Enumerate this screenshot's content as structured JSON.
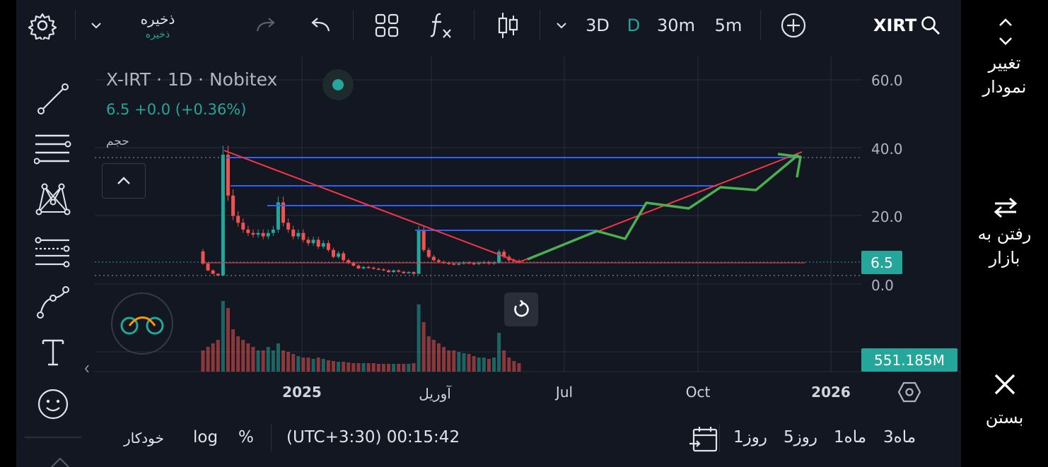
{
  "toolbar": {
    "save_label": "ذخیره",
    "save_sub": "ذخیره",
    "intervals": [
      "3D",
      "D",
      "30m",
      "5m"
    ],
    "active_interval": "D",
    "symbol": "XIRT"
  },
  "legend": {
    "title": "X-IRT",
    "interval": "· 1D · Nobitex",
    "price": "6.5",
    "change": "+0.0 (+0.36%)",
    "volume_label": "حجم"
  },
  "price_axis": {
    "ticks": [
      "60.0",
      "40.0",
      "20.0",
      "0.0"
    ],
    "last_price_tag": "6.5",
    "volume_tag": "551.185M"
  },
  "time_axis": {
    "ticks": [
      "2025",
      "آوریل",
      "Jul",
      "Oct",
      "2026"
    ]
  },
  "bottom": {
    "ranges": [
      "3ماه",
      "1ماه",
      "5روز",
      "1روز"
    ],
    "clock": "(UTC+3:30) 00:15:42",
    "percent_label": "%",
    "log_label": "log",
    "auto_label": "خودکار"
  },
  "right_panel": {
    "change_chart_line1": "تغییر",
    "change_chart_line2": "نمودار",
    "go_market_line1": "رفتن به",
    "go_market_line2": "بازار",
    "close_label": "بستن"
  },
  "colors": {
    "background": "#131722",
    "accent_teal": "#26a69a",
    "up": "#26a69a",
    "down": "#ef5350",
    "drawing_blue": "#2962ff",
    "drawing_red": "#f23645",
    "drawing_green": "#4caf50"
  },
  "chart_data": {
    "type": "candlestick",
    "price_range": [
      0,
      60
    ],
    "close_series": [
      6,
      4,
      3,
      2.5,
      38,
      26,
      20,
      18,
      16,
      15,
      14.5,
      15,
      14,
      15,
      16,
      24,
      18,
      16,
      14,
      15,
      13,
      12,
      13,
      11,
      12,
      10,
      8,
      9,
      7,
      6.2,
      5.4,
      4.6,
      5.0,
      4.8,
      4.5,
      4.3,
      4.0,
      3.5,
      4.0,
      3.6,
      3.2,
      3.5,
      3.0,
      16,
      10,
      8,
      7,
      6.5,
      6.2,
      6,
      5.8,
      6,
      6.3,
      6.1,
      5.9,
      6.2,
      6.4,
      6.0,
      6.3,
      9.5,
      8,
      7,
      6.8,
      6.5
    ],
    "volume_series": [
      0.3,
      0.35,
      0.4,
      0.45,
      1.0,
      0.9,
      0.6,
      0.5,
      0.45,
      0.4,
      0.35,
      0.3,
      0.3,
      0.35,
      0.3,
      0.4,
      0.3,
      0.28,
      0.25,
      0.22,
      0.2,
      0.2,
      0.18,
      0.2,
      0.18,
      0.16,
      0.15,
      0.14,
      0.14,
      0.13,
      0.12,
      0.12,
      0.12,
      0.12,
      0.12,
      0.11,
      0.11,
      0.11,
      0.11,
      0.11,
      0.11,
      0.11,
      0.12,
      0.95,
      0.7,
      0.5,
      0.45,
      0.4,
      0.35,
      0.3,
      0.3,
      0.28,
      0.26,
      0.25,
      0.22,
      0.2,
      0.2,
      0.18,
      0.2,
      0.55,
      0.3,
      0.2,
      0.15,
      0.12
    ]
  }
}
